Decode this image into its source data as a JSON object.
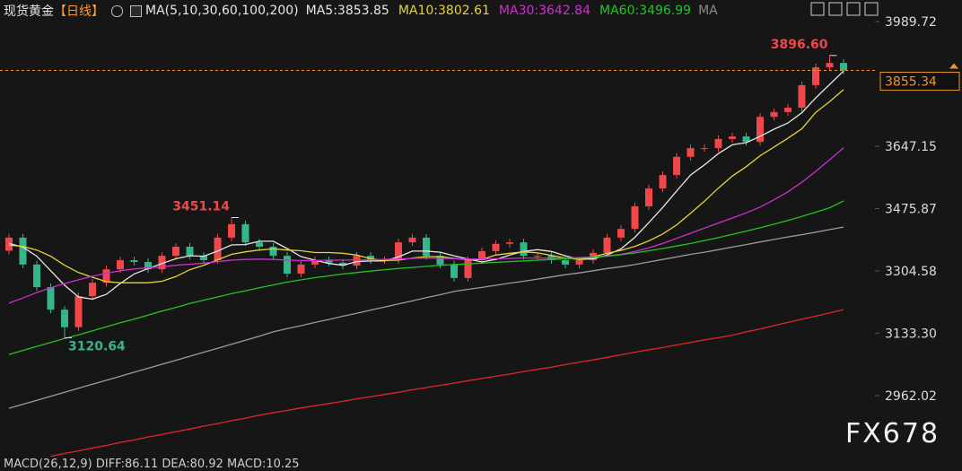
{
  "chart_data": {
    "type": "candlestick",
    "title": "现货黄金",
    "period": "【日线】",
    "indicator": "MA(5,10,30,60,100,200)",
    "ma_label": "MA",
    "macd_text": "MACD(26,12,9) DIFF:86.11 DEA:80.92 MACD:10.25",
    "watermark": "FX678",
    "up_color": "#f0474b",
    "down_color": "#35b58a",
    "open": [
      3360,
      3396,
      3322,
      3260,
      3198,
      3150,
      3235,
      3272,
      3309,
      3334,
      3329,
      3309,
      3346,
      3371,
      3346,
      3334,
      3396,
      3433,
      3383,
      3371,
      3346,
      3297,
      3322,
      3334,
      3327,
      3319,
      3346,
      3334,
      3334,
      3383,
      3396,
      3346,
      3322,
      3285,
      3334,
      3359,
      3379,
      3383,
      3346,
      3346,
      3334,
      3322,
      3334,
      3354,
      3396,
      3420,
      3482,
      3531,
      3568,
      3618,
      3642,
      3642,
      3667,
      3674,
      3659,
      3728,
      3741,
      3753,
      3815,
      3864,
      3876
    ],
    "high": [
      3406,
      3406,
      3332,
      3270,
      3208,
      3245,
      3282,
      3319,
      3344,
      3344,
      3339,
      3356,
      3381,
      3381,
      3356,
      3406,
      3451.14,
      3443,
      3393,
      3381,
      3356,
      3332,
      3344,
      3344,
      3337,
      3356,
      3356,
      3344,
      3393,
      3406,
      3406,
      3356,
      3332,
      3344,
      3369,
      3389,
      3393,
      3393,
      3356,
      3356,
      3344,
      3344,
      3364,
      3406,
      3430,
      3492,
      3541,
      3578,
      3628,
      3652,
      3652,
      3677,
      3684,
      3684,
      3738,
      3751,
      3763,
      3825,
      3874,
      3896.6,
      3886
    ],
    "low": [
      3350,
      3312,
      3250,
      3188,
      3120.64,
      3140,
      3225,
      3262,
      3299,
      3319,
      3299,
      3299,
      3336,
      3336,
      3324,
      3324,
      3386,
      3373,
      3361,
      3336,
      3287,
      3287,
      3312,
      3317,
      3309,
      3309,
      3324,
      3324,
      3324,
      3373,
      3336,
      3312,
      3275,
      3275,
      3324,
      3349,
      3369,
      3336,
      3336,
      3324,
      3312,
      3312,
      3324,
      3344,
      3386,
      3410,
      3472,
      3521,
      3558,
      3608,
      3632,
      3632,
      3657,
      3649,
      3649,
      3718,
      3731,
      3743,
      3805,
      3854,
      3845
    ],
    "close": [
      3396,
      3322,
      3260,
      3198,
      3150,
      3235,
      3272,
      3309,
      3334,
      3329,
      3309,
      3346,
      3371,
      3346,
      3334,
      3396,
      3433,
      3383,
      3371,
      3346,
      3297,
      3322,
      3334,
      3327,
      3319,
      3346,
      3334,
      3334,
      3383,
      3396,
      3346,
      3322,
      3285,
      3334,
      3359,
      3379,
      3383,
      3346,
      3346,
      3334,
      3322,
      3334,
      3354,
      3396,
      3420,
      3482,
      3531,
      3568,
      3618,
      3642,
      3642,
      3667,
      3674,
      3659,
      3728,
      3741,
      3753,
      3815,
      3864,
      3876,
      3855.34
    ],
    "series": [
      {
        "name": "MA5:3853.85",
        "color": "#e6e6e6",
        "values": [
          3380,
          3370,
          3345,
          3305,
          3265,
          3233,
          3227,
          3240,
          3270,
          3296,
          3311,
          3325,
          3338,
          3346,
          3345,
          3359,
          3376,
          3377,
          3386,
          3386,
          3366,
          3344,
          3334,
          3325,
          3320,
          3330,
          3332,
          3332,
          3343,
          3359,
          3359,
          3356,
          3346,
          3337,
          3329,
          3336,
          3348,
          3358,
          3363,
          3358,
          3346,
          3336,
          3338,
          3348,
          3365,
          3397,
          3437,
          3479,
          3524,
          3568,
          3596,
          3627,
          3651,
          3657,
          3674,
          3694,
          3711,
          3739,
          3780,
          3817,
          3853.85
        ]
      },
      {
        "name": "MA10:3802.61",
        "color": "#e6d23a",
        "values": [
          3375,
          3372,
          3362,
          3345,
          3320,
          3300,
          3287,
          3275,
          3272,
          3272,
          3272,
          3276,
          3289,
          3308,
          3320,
          3335,
          3350,
          3357,
          3362,
          3365,
          3362,
          3360,
          3355,
          3355,
          3353,
          3348,
          3338,
          3333,
          3334,
          3340,
          3344,
          3344,
          3339,
          3335,
          3336,
          3348,
          3353,
          3357,
          3354,
          3347,
          3340,
          3336,
          3343,
          3353,
          3361,
          3372,
          3387,
          3406,
          3431,
          3463,
          3496,
          3532,
          3565,
          3591,
          3621,
          3645,
          3669,
          3695,
          3740,
          3770,
          3802.61
        ]
      },
      {
        "name": "MA30:3642.84",
        "color": "#d22cd2",
        "values": [
          3216,
          3230,
          3245,
          3258,
          3270,
          3280,
          3290,
          3298,
          3305,
          3310,
          3313,
          3316,
          3320,
          3323,
          3326,
          3330,
          3334,
          3336,
          3337,
          3336,
          3334,
          3333,
          3333,
          3334,
          3334,
          3335,
          3335,
          3336,
          3337,
          3339,
          3340,
          3339,
          3338,
          3337,
          3337,
          3338,
          3339,
          3340,
          3340,
          3340,
          3340,
          3341,
          3343,
          3346,
          3350,
          3358,
          3368,
          3380,
          3394,
          3408,
          3422,
          3436,
          3450,
          3464,
          3480,
          3500,
          3522,
          3548,
          3578,
          3610,
          3642.84
        ]
      },
      {
        "name": "MA60:3496.99",
        "color": "#23c423",
        "values": [
          3075,
          3086,
          3097,
          3108,
          3119,
          3129,
          3140,
          3151,
          3162,
          3172,
          3183,
          3194,
          3204,
          3215,
          3224,
          3233,
          3242,
          3250,
          3258,
          3266,
          3274,
          3280,
          3286,
          3291,
          3296,
          3300,
          3304,
          3308,
          3311,
          3314,
          3317,
          3320,
          3322,
          3324,
          3326,
          3328,
          3330,
          3332,
          3334,
          3336,
          3338,
          3340,
          3342,
          3345,
          3349,
          3354,
          3360,
          3366,
          3373,
          3380,
          3388,
          3396,
          3405,
          3414,
          3423,
          3433,
          3443,
          3454,
          3466,
          3478,
          3496.99
        ]
      },
      {
        "color": "#9b9b9b",
        "values": [
          2927,
          2938,
          2949,
          2960,
          2971,
          2982,
          2993,
          3004,
          3015,
          3026,
          3037,
          3048,
          3059,
          3070,
          3081,
          3092,
          3103,
          3114,
          3125,
          3137,
          3146,
          3154,
          3163,
          3171,
          3180,
          3188,
          3197,
          3205,
          3214,
          3222,
          3231,
          3239,
          3248,
          3254,
          3259,
          3265,
          3271,
          3276,
          3282,
          3288,
          3294,
          3299,
          3305,
          3311,
          3316,
          3322,
          3329,
          3336,
          3343,
          3350,
          3356,
          3363,
          3370,
          3377,
          3384,
          3391,
          3398,
          3404,
          3411,
          3418,
          3425
        ]
      },
      {
        "color": "#e0262a",
        "values": [
          null,
          null,
          null,
          2795,
          2803,
          2810,
          2818,
          2825,
          2833,
          2840,
          2848,
          2855,
          2863,
          2870,
          2878,
          2885,
          2893,
          2900,
          2908,
          2915,
          2921,
          2928,
          2934,
          2940,
          2946,
          2953,
          2959,
          2965,
          2971,
          2978,
          2984,
          2990,
          2996,
          3003,
          3009,
          3015,
          3021,
          3028,
          3034,
          3040,
          3047,
          3054,
          3060,
          3067,
          3074,
          3081,
          3088,
          3094,
          3101,
          3108,
          3115,
          3121,
          3128,
          3137,
          3145,
          3154,
          3163,
          3172,
          3180,
          3189,
          3198
        ]
      }
    ],
    "high_marks": [
      {
        "value": 3896.6,
        "label": "3896.60"
      },
      3451.14
    ],
    "low_marks": [
      3120.64
    ],
    "price_line_color": "#e8962e",
    "ylim": [
      2767,
      4049
    ],
    "yticks": [
      2962.02,
      {
        "value": 3133.3,
        "label": "3133.30"
      },
      3304.58,
      3475.87,
      3647.15,
      3989.72
    ]
  }
}
